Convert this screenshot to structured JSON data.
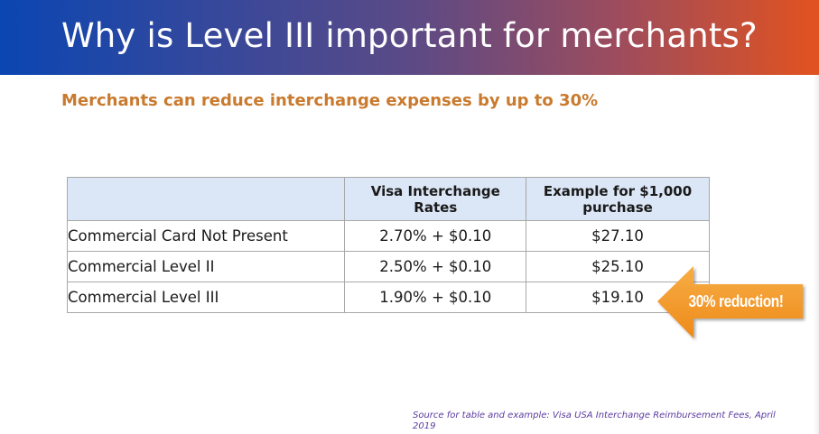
{
  "header": {
    "title": "Why is Level III important for merchants?",
    "gradient_start": "#0b46b2",
    "gradient_end": "#e2521f"
  },
  "subtitle": "Merchants can reduce interchange expenses by up to 30%",
  "table": {
    "headers": [
      "",
      "Visa Interchange Rates",
      "Example for $1,000 purchase"
    ],
    "rows": [
      {
        "label": "Commercial Card Not Present",
        "rate": "2.70% + $0.10",
        "example": "$27.10"
      },
      {
        "label": "Commercial Level II",
        "rate": "2.50% + $0.10",
        "example": "$25.10"
      },
      {
        "label": "Commercial Level III",
        "rate": "1.90% + $0.10",
        "example": "$19.10"
      }
    ]
  },
  "callout": {
    "text": "30% reduction!",
    "color": "#f39b2a",
    "icon": "left-arrow-callout-icon"
  },
  "source": "Source for table and example: Visa USA Interchange Reimbursement Fees, April 2019"
}
